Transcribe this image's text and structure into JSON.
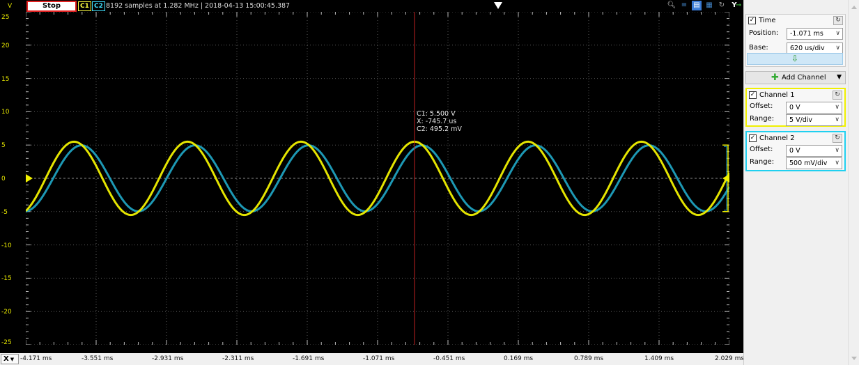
{
  "toolbar": {
    "stop_label": "Stop",
    "c1_label": "C1",
    "c2_label": "C2",
    "acquisition_info": "8192 samples at 1.282 MHz | 2018-04-13 15:00:45.387",
    "y_button": "Y"
  },
  "y_axis": {
    "unit": "V",
    "ticks": [
      "25",
      "20",
      "15",
      "10",
      "5",
      "0",
      "-5",
      "-10",
      "-15",
      "-20",
      "-25"
    ]
  },
  "x_axis": {
    "button_label": "X",
    "ticks": [
      "-4.171 ms",
      "-3.551 ms",
      "-2.931 ms",
      "-2.311 ms",
      "-1.691 ms",
      "-1.071 ms",
      "-0.451 ms",
      "0.169 ms",
      "0.789 ms",
      "1.409 ms",
      "2.029 ms"
    ]
  },
  "cursor": {
    "c1": "C1: 5.500 V",
    "x": "X: -745.7 us",
    "c2": "C2: 495.2 mV"
  },
  "time": {
    "title": "Time",
    "position_label": "Position:",
    "position_value": "-1.071 ms",
    "base_label": "Base:",
    "base_value": "620 us/div"
  },
  "add_channel_label": "Add Channel",
  "channel1": {
    "title": "Channel 1",
    "offset_label": "Offset:",
    "offset_value": "0 V",
    "range_label": "Range:",
    "range_value": "5 V/div"
  },
  "channel2": {
    "title": "Channel 2",
    "offset_label": "Offset:",
    "offset_value": "0 V",
    "range_label": "Range:",
    "range_value": "500 mV/div"
  },
  "colors": {
    "channel1": "#f0f000",
    "channel2": "#20a8c8",
    "cursor": "#c02020",
    "grid": "#5a5a5a"
  },
  "chart_data": {
    "type": "line",
    "xlabel": "",
    "ylabel": "V",
    "xlim": [
      -4.171,
      2.029
    ],
    "ylim": [
      -25,
      25
    ],
    "x_unit": "ms",
    "grid": true,
    "series": [
      {
        "name": "C1",
        "amplitude": 5.5,
        "period_ms": 1.0,
        "phase_peak_ms": -0.7457,
        "samples": 8192
      },
      {
        "name": "C2",
        "amplitude": 4.952,
        "period_ms": 1.0,
        "phase_peak_ms": -0.68
      }
    ],
    "cursor_x": -0.7457
  }
}
